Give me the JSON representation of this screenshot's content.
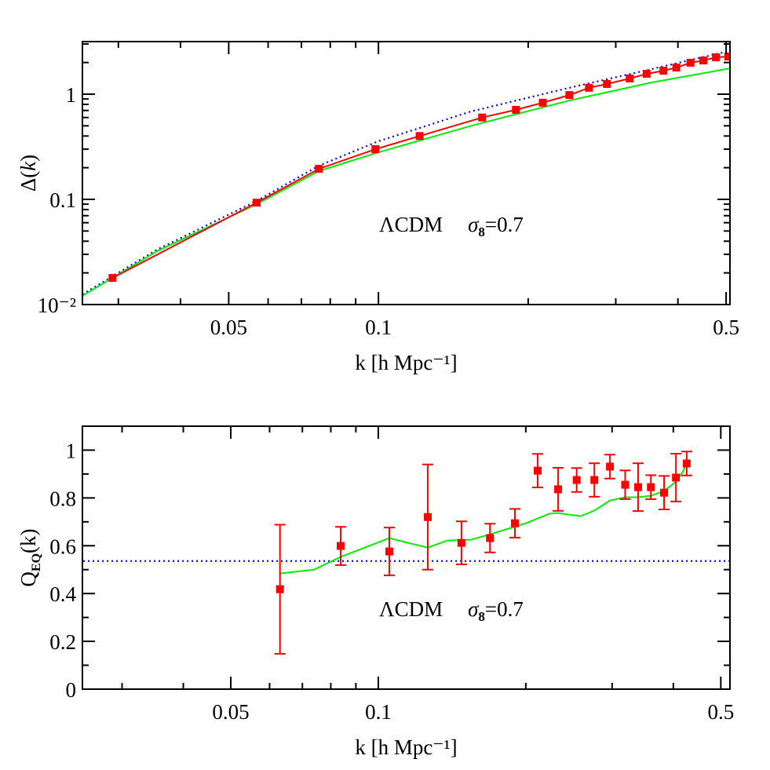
{
  "chart_data": [
    {
      "type": "line",
      "xscale": "log",
      "yscale": "log",
      "xlim": [
        0.0254,
        0.509
      ],
      "ylim": [
        0.01,
        3.16
      ],
      "xticks": [
        0.05,
        0.1,
        0.5
      ],
      "xminorticks": [
        0.03,
        0.04,
        0.06,
        0.07,
        0.08,
        0.09,
        0.2,
        0.3,
        0.4
      ],
      "yticks": [
        {
          "value": 0.01,
          "label": "10⁻²"
        },
        0.1,
        1
      ],
      "yminorticks": [
        0.02,
        0.03,
        0.04,
        0.05,
        0.06,
        0.07,
        0.08,
        0.09,
        0.2,
        0.3,
        0.4,
        0.5,
        0.6,
        0.7,
        0.8,
        0.9,
        2,
        3
      ],
      "xlabel": "k [h Mpc⁻¹]",
      "ylabel": [
        "Δ(",
        "k",
        ")"
      ],
      "annotation": [
        "ΛCDM",
        "σ",
        "8",
        "=0.7"
      ],
      "series": [
        {
          "color": "#0000ff",
          "dash": "dotted",
          "x": [
            0.0254,
            0.0359,
            0.0569,
            0.0759,
            0.1,
            0.1535,
            0.242,
            0.354,
            0.509
          ],
          "values": [
            0.0125,
            0.0333,
            0.0966,
            0.209,
            0.357,
            0.685,
            1.15,
            1.73,
            2.58
          ]
        },
        {
          "color": "#00ee00",
          "x": [
            0.0254,
            0.0359,
            0.0569,
            0.0759,
            0.1,
            0.1535,
            0.242,
            0.354,
            0.509
          ],
          "values": [
            0.0121,
            0.0322,
            0.09,
            0.186,
            0.28,
            0.5,
            0.87,
            1.29,
            1.76
          ]
        },
        {
          "color": "#ff0000",
          "marker": "square",
          "x": [
            0.0292,
            0.0569,
            0.0759,
            0.0986,
            0.121,
            0.1616,
            0.189,
            0.214,
            0.242,
            0.265,
            0.288,
            0.32,
            0.346,
            0.374,
            0.397,
            0.424,
            0.45,
            0.477,
            0.505
          ],
          "values": [
            0.0179,
            0.093,
            0.195,
            0.3,
            0.4,
            0.6,
            0.71,
            0.83,
            0.98,
            1.15,
            1.25,
            1.41,
            1.56,
            1.67,
            1.79,
            1.99,
            2.09,
            2.24,
            2.28
          ]
        }
      ]
    },
    {
      "type": "line",
      "xscale": "log",
      "yscale": "linear",
      "xlim": [
        0.0249,
        0.522
      ],
      "ylim": [
        0,
        1.1
      ],
      "xticks": [
        0.05,
        0.1,
        0.5
      ],
      "xminorticks": [
        0.03,
        0.04,
        0.06,
        0.07,
        0.08,
        0.09,
        0.2,
        0.3,
        0.4
      ],
      "yticks": [
        0,
        0.2,
        0.4,
        0.6,
        0.8,
        1
      ],
      "yminorticks": [
        0.1,
        0.3,
        0.5,
        0.7,
        0.9
      ],
      "xlabel": "k [h Mpc⁻¹]",
      "ylabel": [
        "Q",
        "EQ",
        "(k)"
      ],
      "annotation": [
        "ΛCDM",
        "σ",
        "8",
        "=0.7"
      ],
      "series": [
        {
          "color": "#0000ff",
          "dash": "dotted",
          "x": [
            0.025,
            0.52
          ],
          "values": [
            0.536,
            0.536
          ]
        },
        {
          "color": "#00ee00",
          "x": [
            0.063,
            0.0739,
            0.0838,
            0.0957,
            0.1053,
            0.115,
            0.1262,
            0.1383,
            0.1545,
            0.169,
            0.186,
            0.2,
            0.2235,
            0.2328,
            0.245,
            0.259,
            0.276,
            0.297,
            0.319,
            0.339,
            0.36,
            0.383,
            0.405,
            0.419,
            0.426
          ],
          "values": [
            0.484,
            0.5,
            0.553,
            0.599,
            0.632,
            0.612,
            0.592,
            0.622,
            0.625,
            0.648,
            0.674,
            0.694,
            0.734,
            0.737,
            0.73,
            0.724,
            0.747,
            0.789,
            0.803,
            0.803,
            0.809,
            0.829,
            0.868,
            0.911,
            0.947
          ]
        },
        {
          "color": "#ff0000",
          "marker": "square",
          "line": false,
          "x": [
            0.063,
            0.0838,
            0.1053,
            0.1262,
            0.1478,
            0.169,
            0.19,
            0.2115,
            0.2328,
            0.254,
            0.276,
            0.297,
            0.319,
            0.339,
            0.36,
            0.383,
            0.405,
            0.426
          ],
          "values": [
            0.418,
            0.599,
            0.576,
            0.72,
            0.612,
            0.632,
            0.694,
            0.914,
            0.836,
            0.875,
            0.875,
            0.931,
            0.855,
            0.845,
            0.845,
            0.822,
            0.885,
            0.944
          ],
          "errors": [
            0.27,
            0.08,
            0.1,
            0.22,
            0.09,
            0.06,
            0.06,
            0.07,
            0.09,
            0.05,
            0.07,
            0.05,
            0.06,
            0.1,
            0.05,
            0.07,
            0.1,
            0.05
          ]
        }
      ]
    }
  ]
}
